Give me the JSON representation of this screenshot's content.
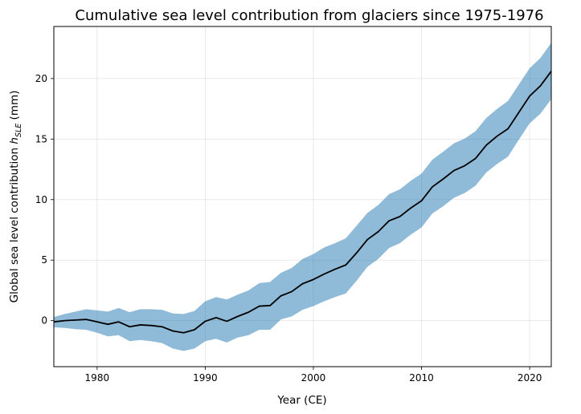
{
  "chart_data": {
    "type": "area",
    "title": "Cumulative sea level contribution from glaciers since 1975-1976",
    "xlabel": "Year (CE)",
    "ylabel": {
      "prefix": "Global sea level contribution ",
      "var": "h",
      "sub": "SLE",
      "suffix": " (mm)"
    },
    "xlim": [
      1976,
      2022
    ],
    "ylim": [
      -3.8,
      24.3
    ],
    "xticks": [
      1980,
      1990,
      2000,
      2010,
      2020
    ],
    "yticks": [
      0,
      5,
      10,
      15,
      20
    ],
    "grid": true,
    "colors": {
      "line": "#000000",
      "band": "#1f77b4"
    },
    "series": [
      {
        "name": "Cumulative sea level contribution",
        "x": [
          1976,
          1977,
          1978,
          1979,
          1980,
          1981,
          1982,
          1983,
          1984,
          1985,
          1986,
          1987,
          1988,
          1989,
          1990,
          1991,
          1992,
          1993,
          1994,
          1995,
          1996,
          1997,
          1998,
          1999,
          2000,
          2001,
          2002,
          2003,
          2004,
          2005,
          2006,
          2007,
          2008,
          2009,
          2010,
          2011,
          2012,
          2013,
          2014,
          2015,
          2016,
          2017,
          2018,
          2019,
          2020,
          2021,
          2022
        ],
        "y": [
          -0.1,
          0.0,
          0.05,
          0.1,
          -0.1,
          -0.3,
          -0.1,
          -0.5,
          -0.35,
          -0.4,
          -0.5,
          -0.85,
          -1.0,
          -0.75,
          -0.05,
          0.25,
          -0.05,
          0.35,
          0.7,
          1.2,
          1.25,
          2.05,
          2.4,
          3.05,
          3.4,
          3.85,
          4.25,
          4.6,
          5.6,
          6.7,
          7.35,
          8.25,
          8.6,
          9.3,
          9.9,
          11.05,
          11.7,
          12.4,
          12.8,
          13.4,
          14.5,
          15.25,
          15.85,
          17.2,
          18.55,
          19.4,
          20.6
        ],
        "lower": [
          -0.55,
          -0.6,
          -0.7,
          -0.75,
          -1.0,
          -1.3,
          -1.2,
          -1.7,
          -1.6,
          -1.7,
          -1.85,
          -2.3,
          -2.5,
          -2.3,
          -1.7,
          -1.5,
          -1.8,
          -1.4,
          -1.2,
          -0.75,
          -0.75,
          0.1,
          0.35,
          0.9,
          1.2,
          1.6,
          1.95,
          2.25,
          3.3,
          4.45,
          5.1,
          6.0,
          6.4,
          7.1,
          7.7,
          8.85,
          9.45,
          10.15,
          10.55,
          11.15,
          12.25,
          12.95,
          13.55,
          14.95,
          16.3,
          17.1,
          18.3
        ],
        "upper": [
          0.3,
          0.55,
          0.75,
          0.95,
          0.85,
          0.75,
          1.05,
          0.7,
          0.95,
          0.95,
          0.9,
          0.6,
          0.55,
          0.8,
          1.6,
          1.95,
          1.75,
          2.15,
          2.5,
          3.1,
          3.2,
          3.95,
          4.35,
          5.1,
          5.5,
          6.05,
          6.4,
          6.8,
          7.85,
          8.9,
          9.55,
          10.45,
          10.85,
          11.55,
          12.15,
          13.3,
          13.95,
          14.65,
          15.05,
          15.65,
          16.75,
          17.5,
          18.15,
          19.5,
          20.85,
          21.7,
          22.95
        ]
      }
    ]
  }
}
